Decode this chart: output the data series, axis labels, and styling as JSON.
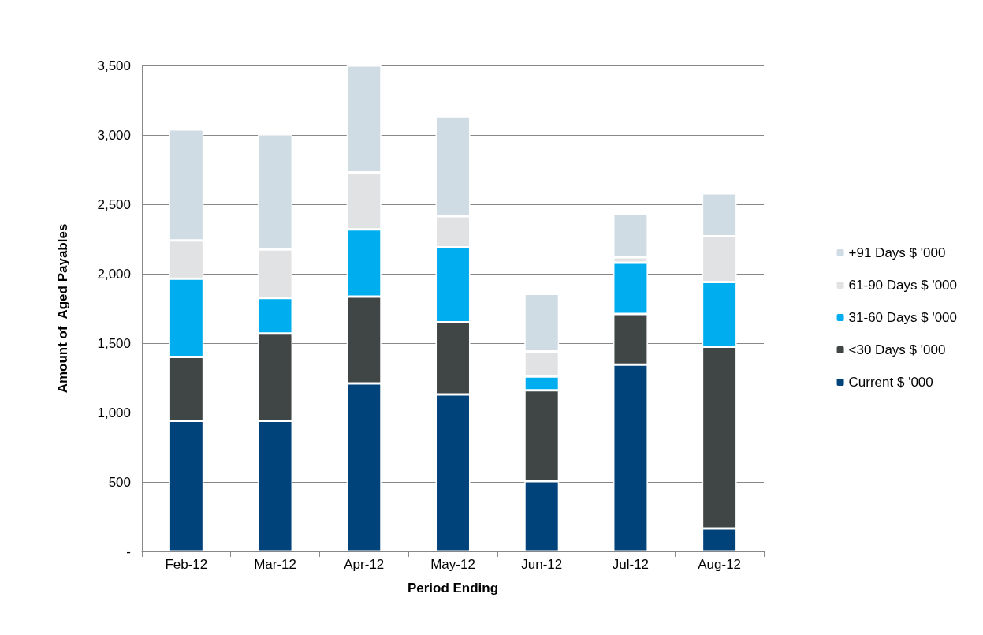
{
  "chart_data": {
    "type": "bar",
    "stacked": true,
    "xlabel": "Period Ending",
    "ylabel": "Amount of  Aged Payables",
    "categories": [
      "Feb-12",
      "Mar-12",
      "Apr-12",
      "May-12",
      "Jun-12",
      "Jul-12",
      "Aug-12"
    ],
    "series": [
      {
        "name": "Current $ '000",
        "color": "#00427a",
        "values": [
          940,
          940,
          1210,
          1130,
          505,
          1345,
          165
        ]
      },
      {
        "name": "<30 Days $ '000",
        "color": "#404545",
        "values": [
          460,
          630,
          625,
          520,
          655,
          365,
          1310
        ]
      },
      {
        "name": "31-60 Days $ '000",
        "color": "#00aeef",
        "values": [
          565,
          255,
          485,
          540,
          100,
          370,
          465
        ]
      },
      {
        "name": "61-90 Days $ '000",
        "color": "#e1e2e3",
        "values": [
          275,
          350,
          410,
          225,
          180,
          40,
          330
        ]
      },
      {
        "name": "+91 Days $ '000",
        "color": "#d0dce4",
        "values": [
          800,
          830,
          770,
          720,
          415,
          310,
          310
        ]
      }
    ],
    "ylim": [
      0,
      3500
    ],
    "yticks": [
      {
        "value": 0,
        "label": "-"
      },
      {
        "value": 500,
        "label": "500"
      },
      {
        "value": 1000,
        "label": "1,000"
      },
      {
        "value": 1500,
        "label": "1,500"
      },
      {
        "value": 2000,
        "label": "2,000"
      },
      {
        "value": 2500,
        "label": "2,500"
      },
      {
        "value": 3000,
        "label": "3,000"
      },
      {
        "value": 3500,
        "label": "3,500"
      }
    ],
    "grid": "y",
    "legend": "right"
  }
}
